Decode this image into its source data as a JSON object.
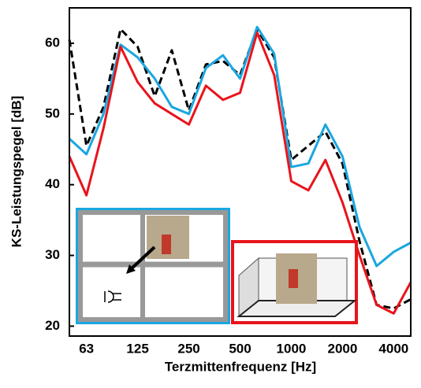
{
  "chart_data": {
    "type": "line",
    "x_label": "Terzmittenfrequenz [Hz]",
    "y_label": "KS-Leistungspegel [dB]",
    "categories": [
      null,
      "63",
      null,
      null,
      "125",
      null,
      null,
      "250",
      null,
      null,
      "500",
      null,
      null,
      "1000",
      null,
      null,
      "2000",
      null,
      null,
      "4000",
      null
    ],
    "ylim": [
      18.6,
      65
    ],
    "yticks": [
      20,
      30,
      40,
      50,
      60
    ],
    "grid": false,
    "series": [
      {
        "color": "#000000",
        "dash": true,
        "values": [
          60.5,
          45.5,
          51,
          62,
          59.5,
          52.5,
          59,
          50.5,
          57,
          57.5,
          55.5,
          62,
          58,
          43.5,
          45.5,
          47.5,
          43,
          32,
          23,
          22.5,
          23.8
        ]
      },
      {
        "color": "#1aa7e0",
        "dash": false,
        "values": [
          46.5,
          44.3,
          50,
          59.8,
          58,
          55,
          51,
          50,
          56.5,
          58.3,
          55,
          62.3,
          58.5,
          42.5,
          43,
          48.5,
          44,
          34,
          28.5,
          30.5,
          31.8
        ]
      },
      {
        "color": "#e8141b",
        "dash": false,
        "values": [
          44,
          38.5,
          48,
          59.5,
          54.5,
          51.5,
          50,
          48.5,
          54,
          52,
          53,
          61.5,
          55.5,
          40.5,
          39.2,
          43.5,
          37.5,
          30,
          23,
          21.8,
          26.2
        ]
      }
    ]
  }
}
